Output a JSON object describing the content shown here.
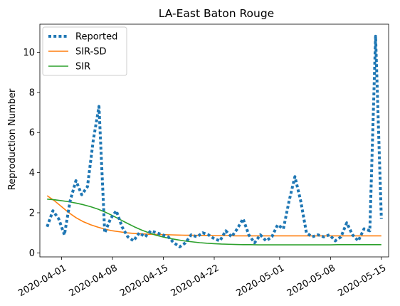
{
  "chart_data": {
    "type": "line",
    "title": "LA-East Baton Rouge",
    "xlabel": "",
    "ylabel": "Reproduction Number",
    "x_start": "2020-03-30",
    "x_end": "2020-05-15",
    "xlim": [
      "2020-03-29",
      "2020-05-16"
    ],
    "ylim": [
      -0.2,
      11.4
    ],
    "yticks": [
      0,
      2,
      4,
      6,
      8,
      10
    ],
    "xticks": [
      "2020-04-01",
      "2020-04-08",
      "2020-04-15",
      "2020-04-22",
      "2020-05-01",
      "2020-05-08",
      "2020-05-15"
    ],
    "grid": false,
    "legend_position": "top-left",
    "series": [
      {
        "name": "Reported",
        "color": "#1f77b4",
        "style": "dotted",
        "values": [
          1.3,
          2.1,
          1.7,
          0.9,
          2.6,
          3.6,
          2.9,
          3.3,
          5.6,
          7.3,
          1.0,
          1.7,
          2.1,
          1.3,
          0.8,
          0.6,
          1.0,
          0.8,
          1.1,
          1.0,
          0.9,
          0.8,
          0.5,
          0.3,
          0.5,
          0.9,
          0.8,
          1.0,
          0.9,
          0.7,
          0.6,
          1.1,
          0.8,
          1.2,
          1.7,
          0.9,
          0.5,
          0.9,
          0.6,
          0.8,
          1.4,
          1.2,
          2.6,
          3.8,
          2.6,
          1.0,
          0.8,
          0.9,
          0.8,
          0.9,
          0.6,
          0.8,
          1.5,
          0.9,
          0.6,
          1.2,
          1.1,
          10.8,
          1.7
        ]
      },
      {
        "name": "SIR-SD",
        "color": "#ff7f0e",
        "style": "solid",
        "values": [
          2.85,
          2.6,
          2.3,
          2.0,
          1.75,
          1.55,
          1.4,
          1.28,
          1.18,
          1.1,
          1.05,
          1.0,
          0.97,
          0.95,
          0.93,
          0.92,
          0.91,
          0.9,
          0.89,
          0.88,
          0.88,
          0.87,
          0.87,
          0.86,
          0.86,
          0.86,
          0.85,
          0.85,
          0.85,
          0.85,
          0.85,
          0.85,
          0.85,
          0.85,
          0.85,
          0.85,
          0.85,
          0.85,
          0.85,
          0.85,
          0.85,
          0.85,
          0.85,
          0.85,
          0.85,
          0.85,
          0.85
        ]
      },
      {
        "name": "SIR",
        "color": "#2ca02c",
        "style": "solid",
        "values": [
          2.68,
          2.65,
          2.6,
          2.55,
          2.48,
          2.4,
          2.3,
          2.18,
          2.03,
          1.86,
          1.67,
          1.48,
          1.3,
          1.14,
          1.0,
          0.88,
          0.79,
          0.71,
          0.65,
          0.59,
          0.55,
          0.51,
          0.48,
          0.46,
          0.44,
          0.43,
          0.42,
          0.41,
          0.41,
          0.4,
          0.4,
          0.4,
          0.4,
          0.4,
          0.4,
          0.4,
          0.4,
          0.4,
          0.4,
          0.4,
          0.41,
          0.41,
          0.41,
          0.41,
          0.41,
          0.41,
          0.41
        ]
      }
    ]
  }
}
